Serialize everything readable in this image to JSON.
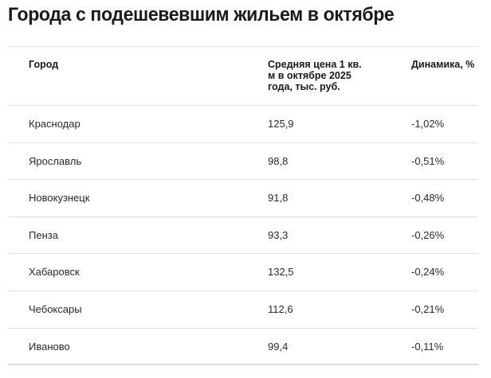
{
  "title": "Города с подешевевшим жильем в октябре",
  "table": {
    "headers": [
      "Город",
      "Средняя цена 1 кв. м в октябре 2025 года, тыс. руб.",
      "Динамика, %"
    ],
    "rows": [
      {
        "city": "Краснодар",
        "price": "125,9",
        "change": "-1,02%"
      },
      {
        "city": "Ярославль",
        "price": "98,8",
        "change": "-0,51%"
      },
      {
        "city": "Новокузнецк",
        "price": "91,8",
        "change": "-0,48%"
      },
      {
        "city": "Пенза",
        "price": "93,3",
        "change": "-0,26%"
      },
      {
        "city": "Хабаровск",
        "price": "132,5",
        "change": "-0,24%"
      },
      {
        "city": "Чебоксары",
        "price": "112,6",
        "change": "-0,21%"
      },
      {
        "city": "Иваново",
        "price": "99,4",
        "change": "-0,11%"
      }
    ]
  }
}
